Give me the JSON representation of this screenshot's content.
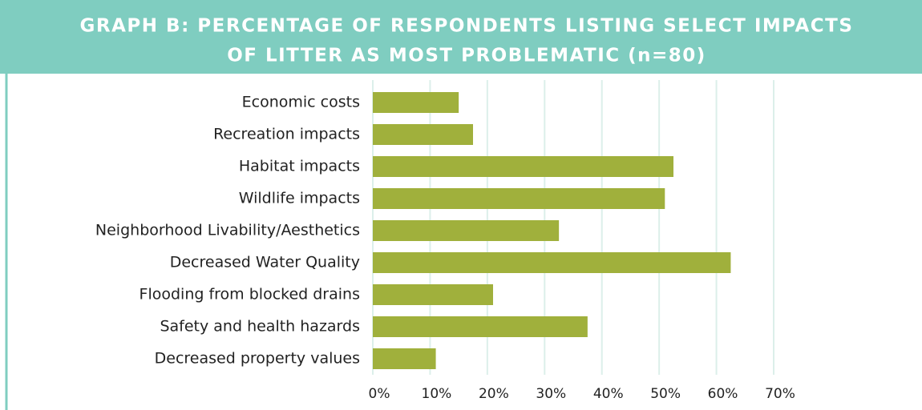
{
  "chart_data": {
    "type": "bar",
    "orientation": "horizontal",
    "title": [
      "GRAPH B: PERCENTAGE OF RESPONDENTS LISTING SELECT IMPACTS",
      "OF LITTER AS MOST PROBLEMATIC (n=80)"
    ],
    "categories": [
      "Economic costs",
      "Recreation impacts",
      "Habitat impacts",
      "Wildlife impacts",
      "Neighborhood Livability/Aesthetics",
      "Decreased Water Quality",
      "Flooding from blocked drains",
      "Safety and health hazards",
      "Decreased property values"
    ],
    "values": [
      15,
      17.5,
      52.5,
      51,
      32.5,
      62.5,
      21,
      37.5,
      11
    ],
    "color": "#a0b03c",
    "xlim": [
      0,
      70
    ],
    "xticks": [
      {
        "value": 0,
        "label": "0%"
      },
      {
        "value": 10,
        "label": "10%"
      },
      {
        "value": 20,
        "label": "20%"
      },
      {
        "value": 30,
        "label": "30%"
      },
      {
        "value": 40,
        "label": "40%"
      },
      {
        "value": 50,
        "label": "50%"
      },
      {
        "value": 60,
        "label": "60%"
      },
      {
        "value": 70,
        "label": "70%"
      }
    ],
    "grid": true
  }
}
